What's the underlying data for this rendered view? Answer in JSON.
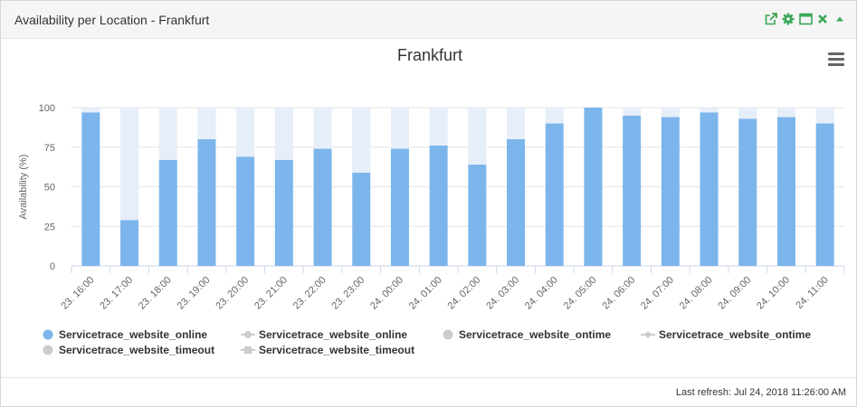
{
  "widget": {
    "title": "Availability per Location - Frankfurt",
    "tools": [
      "external-link-icon",
      "gear-icon",
      "maximize-icon",
      "close-icon",
      "collapse-icon"
    ],
    "tool_color": "#3aa655"
  },
  "chart_data": {
    "type": "bar",
    "title": "Frankfurt",
    "xlabel": "",
    "ylabel": "Availability (%)",
    "ylim": [
      0,
      100
    ],
    "yticks": [
      0,
      25,
      50,
      75,
      100
    ],
    "categories": [
      "23. 16:00",
      "23. 17:00",
      "23. 18:00",
      "23. 19:00",
      "23. 20:00",
      "23. 21:00",
      "23. 22:00",
      "23. 23:00",
      "24. 00:00",
      "24. 01:00",
      "24. 02:00",
      "24. 03:00",
      "24. 04:00",
      "24. 05:00",
      "24. 06:00",
      "24. 07:00",
      "24. 08:00",
      "24. 09:00",
      "24. 10:00",
      "24. 11:00"
    ],
    "series": [
      {
        "name": "Servicetrace_website_online",
        "color": "#7cb5ec",
        "values": [
          97,
          29,
          67,
          80,
          69,
          67,
          74,
          59,
          74,
          76,
          64,
          80,
          90,
          100,
          95,
          94,
          97,
          93,
          94,
          90
        ]
      },
      {
        "name": "Servicetrace_website_timeout",
        "color": "#e6eef9",
        "values": [
          3,
          71,
          33,
          20,
          31,
          33,
          26,
          41,
          26,
          24,
          36,
          20,
          10,
          0,
          5,
          6,
          3,
          7,
          6,
          10
        ]
      }
    ],
    "stacked": true,
    "grid": true
  },
  "legend": [
    {
      "label": "Servicetrace_website_online",
      "symbol": "circle",
      "color": "#7cb5ec"
    },
    {
      "label": "Servicetrace_website_online",
      "symbol": "line-circle",
      "color": "#cccccc"
    },
    {
      "label": "Servicetrace_website_ontime",
      "symbol": "circle",
      "color": "#cccccc"
    },
    {
      "label": "Servicetrace_website_ontime",
      "symbol": "line-diamond",
      "color": "#cccccc"
    },
    {
      "label": "Servicetrace_website_timeout",
      "symbol": "circle",
      "color": "#cccccc"
    },
    {
      "label": "Servicetrace_website_timeout",
      "symbol": "line-square",
      "color": "#cccccc"
    }
  ],
  "footer": {
    "last_refresh": "Last refresh: Jul 24, 2018 11:26:00 AM"
  }
}
